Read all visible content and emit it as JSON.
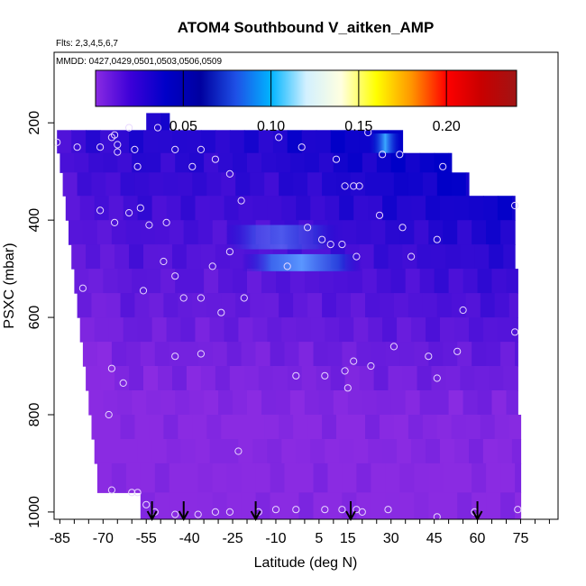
{
  "chart_data": {
    "type": "heatmap",
    "title": "ATOM4 Southbound V_aitken_AMP",
    "flights_label": "Flts: 2,3,4,5,6,7",
    "dates_label": "MMDD: 0427,0429,0501,0503,0506,0509",
    "xlabel": "Latitude (deg N)",
    "ylabel": "PSXC (mbar)",
    "xlim": [
      -87,
      88
    ],
    "ylim": [
      1015,
      55
    ],
    "x_tick_labels": [
      "-85",
      "-70",
      "-55",
      "-40",
      "-25",
      "-10",
      "5",
      "15",
      "30",
      "45",
      "60",
      "75"
    ],
    "x_tick_values": [
      -85,
      -70,
      -55,
      -40,
      -25,
      -10,
      5,
      15,
      30,
      45,
      60,
      75
    ],
    "y_tick_labels": [
      "200",
      "400",
      "600",
      "800",
      "1000"
    ],
    "y_tick_values": [
      200,
      400,
      600,
      800,
      1000
    ],
    "colorbar": {
      "range": [
        0.0,
        0.24
      ],
      "tick_labels": [
        "0.05",
        "0.10",
        "0.15",
        "0.20"
      ],
      "tick_values": [
        0.05,
        0.1,
        0.15,
        0.2
      ],
      "colors": [
        "#8a2be2",
        "#3c00d8",
        "#0000c8",
        "#0000a0",
        "#1e50e6",
        "#00b4ff",
        "#d2f0ff",
        "#ffffe0",
        "#ffff00",
        "#ff9600",
        "#ff0000",
        "#c80000",
        "#a01414"
      ]
    },
    "profile_arrows_lat": [
      -53,
      -42,
      -17,
      16,
      60
    ],
    "color_scale_note": "",
    "observations": [
      {
        "lat": -86,
        "p": 240
      },
      {
        "lat": -79,
        "p": 250
      },
      {
        "lat": -71,
        "p": 250
      },
      {
        "lat": -67,
        "p": 230
      },
      {
        "lat": -66,
        "p": 225
      },
      {
        "lat": -65,
        "p": 245
      },
      {
        "lat": -65,
        "p": 260
      },
      {
        "lat": -61,
        "p": 210
      },
      {
        "lat": -59,
        "p": 255
      },
      {
        "lat": -58,
        "p": 290
      },
      {
        "lat": -51,
        "p": 210
      },
      {
        "lat": -45,
        "p": 255
      },
      {
        "lat": -39,
        "p": 290
      },
      {
        "lat": -36,
        "p": 255
      },
      {
        "lat": -31,
        "p": 275
      },
      {
        "lat": -26,
        "p": 305
      },
      {
        "lat": -22,
        "p": 360
      },
      {
        "lat": -9,
        "p": 230
      },
      {
        "lat": -1,
        "p": 250
      },
      {
        "lat": 11,
        "p": 275
      },
      {
        "lat": 14,
        "p": 330
      },
      {
        "lat": 17,
        "p": 330
      },
      {
        "lat": 19,
        "p": 330
      },
      {
        "lat": 22,
        "p": 220
      },
      {
        "lat": 27,
        "p": 265
      },
      {
        "lat": 33,
        "p": 265
      },
      {
        "lat": 48,
        "p": 290
      },
      {
        "lat": -71,
        "p": 380
      },
      {
        "lat": -66,
        "p": 405
      },
      {
        "lat": -61,
        "p": 385
      },
      {
        "lat": -57,
        "p": 375
      },
      {
        "lat": -54,
        "p": 410
      },
      {
        "lat": -48,
        "p": 405
      },
      {
        "lat": -49,
        "p": 485
      },
      {
        "lat": -45,
        "p": 515
      },
      {
        "lat": -42,
        "p": 560
      },
      {
        "lat": -36,
        "p": 560
      },
      {
        "lat": -32,
        "p": 495
      },
      {
        "lat": -29,
        "p": 590
      },
      {
        "lat": -26,
        "p": 465
      },
      {
        "lat": -21,
        "p": 560
      },
      {
        "lat": -6,
        "p": 495
      },
      {
        "lat": 1,
        "p": 415
      },
      {
        "lat": 6,
        "p": 440
      },
      {
        "lat": 9,
        "p": 450
      },
      {
        "lat": 13,
        "p": 450
      },
      {
        "lat": 18,
        "p": 475
      },
      {
        "lat": 26,
        "p": 390
      },
      {
        "lat": 34,
        "p": 415
      },
      {
        "lat": 37,
        "p": 475
      },
      {
        "lat": 46,
        "p": 440
      },
      {
        "lat": 55,
        "p": 585
      },
      {
        "lat": 73,
        "p": 370
      },
      {
        "lat": 73,
        "p": 630
      },
      {
        "lat": -77,
        "p": 540
      },
      {
        "lat": -56,
        "p": 545
      },
      {
        "lat": -67,
        "p": 705
      },
      {
        "lat": -63,
        "p": 735
      },
      {
        "lat": -68,
        "p": 800
      },
      {
        "lat": -67,
        "p": 955
      },
      {
        "lat": -60,
        "p": 960
      },
      {
        "lat": -58,
        "p": 960
      },
      {
        "lat": -45,
        "p": 680
      },
      {
        "lat": -36,
        "p": 675
      },
      {
        "lat": -23,
        "p": 875
      },
      {
        "lat": -3,
        "p": 720
      },
      {
        "lat": 7,
        "p": 720
      },
      {
        "lat": 14,
        "p": 710
      },
      {
        "lat": 17,
        "p": 690
      },
      {
        "lat": 15,
        "p": 745
      },
      {
        "lat": 23,
        "p": 700
      },
      {
        "lat": 31,
        "p": 660
      },
      {
        "lat": 43,
        "p": 680
      },
      {
        "lat": 46,
        "p": 725
      },
      {
        "lat": 53,
        "p": 670
      },
      {
        "lat": -55,
        "p": 985
      },
      {
        "lat": -52,
        "p": 1000
      },
      {
        "lat": -45,
        "p": 1005
      },
      {
        "lat": -37,
        "p": 1005
      },
      {
        "lat": -31,
        "p": 1000
      },
      {
        "lat": -26,
        "p": 1000
      },
      {
        "lat": -16,
        "p": 1000
      },
      {
        "lat": -10,
        "p": 995
      },
      {
        "lat": -3,
        "p": 995
      },
      {
        "lat": 7,
        "p": 995
      },
      {
        "lat": 13,
        "p": 995
      },
      {
        "lat": 18,
        "p": 995
      },
      {
        "lat": 20,
        "p": 1000
      },
      {
        "lat": 29,
        "p": 995
      },
      {
        "lat": 46,
        "p": 1010
      },
      {
        "lat": 59,
        "p": 1000
      },
      {
        "lat": 74,
        "p": 995
      }
    ]
  }
}
